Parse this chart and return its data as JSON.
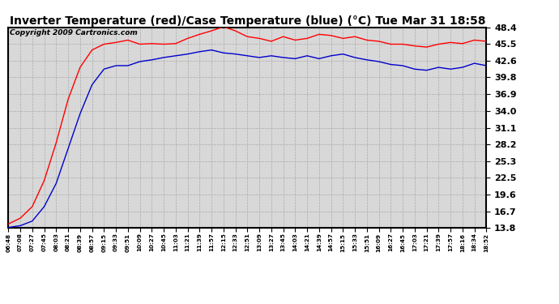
{
  "title": "Inverter Temperature (red)/Case Temperature (blue) (°C) Tue Mar 31 18:58",
  "copyright": "Copyright 2009 Cartronics.com",
  "yticks": [
    13.8,
    16.7,
    19.6,
    22.5,
    25.3,
    28.2,
    31.1,
    34.0,
    36.9,
    39.8,
    42.6,
    45.5,
    48.4
  ],
  "ymin": 13.8,
  "ymax": 48.4,
  "xtick_labels": [
    "06:48",
    "07:08",
    "07:27",
    "07:45",
    "08:03",
    "08:21",
    "08:39",
    "08:57",
    "09:15",
    "09:33",
    "09:51",
    "10:09",
    "10:27",
    "10:45",
    "11:03",
    "11:21",
    "11:39",
    "11:57",
    "12:15",
    "12:33",
    "12:51",
    "13:09",
    "13:27",
    "13:45",
    "14:03",
    "14:21",
    "14:39",
    "14:57",
    "15:15",
    "15:33",
    "15:51",
    "16:09",
    "16:27",
    "16:45",
    "17:03",
    "17:21",
    "17:39",
    "17:57",
    "18:16",
    "18:34",
    "18:52"
  ],
  "red_y": [
    14.5,
    15.5,
    17.5,
    22.0,
    28.5,
    36.0,
    41.5,
    44.5,
    45.5,
    45.8,
    46.2,
    45.5,
    45.6,
    45.5,
    45.6,
    46.5,
    47.2,
    47.8,
    48.5,
    47.8,
    46.8,
    46.5,
    46.0,
    46.8,
    46.2,
    46.5,
    47.2,
    47.0,
    46.5,
    46.8,
    46.2,
    46.0,
    45.5,
    45.5,
    45.2,
    45.0,
    45.5,
    45.8,
    45.6,
    46.2,
    46.0
  ],
  "blue_y": [
    13.9,
    14.2,
    15.0,
    17.5,
    21.5,
    27.5,
    33.5,
    38.5,
    41.2,
    41.8,
    41.8,
    42.5,
    42.8,
    43.2,
    43.5,
    43.8,
    44.2,
    44.5,
    44.0,
    43.8,
    43.5,
    43.2,
    43.5,
    43.2,
    43.0,
    43.5,
    43.0,
    43.5,
    43.8,
    43.2,
    42.8,
    42.5,
    42.0,
    41.8,
    41.2,
    41.0,
    41.5,
    41.2,
    41.5,
    42.2,
    41.8
  ],
  "bg_color": "#d8d8d8",
  "grid_color": "#aaaaaa",
  "red_color": "#ff0000",
  "blue_color": "#0000cc",
  "title_fontsize": 10,
  "copyright_fontsize": 6.5,
  "border_color": "#000000"
}
